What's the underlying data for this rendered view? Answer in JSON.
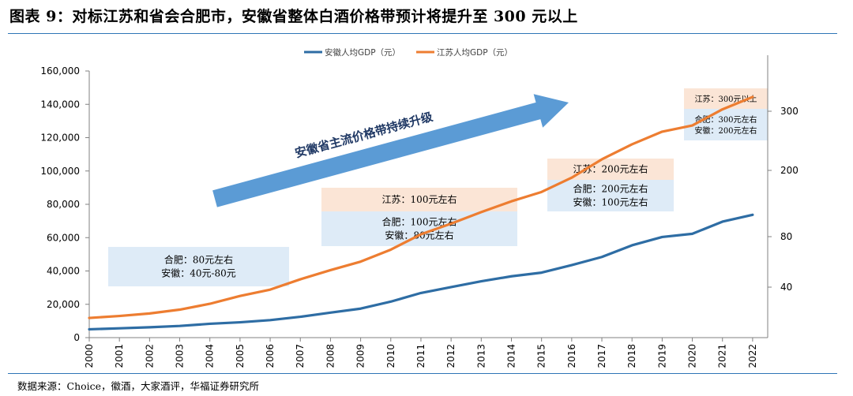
{
  "figure": {
    "title": "图表 9：对标江苏和省会合肥市，安徽省整体白酒价格带预计将提升至 300 元以上",
    "source": "数据来源：Choice，徽酒，大家酒评，华福证券研究所"
  },
  "chart_data": {
    "type": "line",
    "x": [
      "2000",
      "2001",
      "2002",
      "2003",
      "2004",
      "2005",
      "2006",
      "2007",
      "2008",
      "2009",
      "2010",
      "2011",
      "2012",
      "2013",
      "2014",
      "2015",
      "2016",
      "2017",
      "2018",
      "2019",
      "2020",
      "2021",
      "2022"
    ],
    "series": [
      {
        "name": "安徽人均GDP（元）",
        "color": "#2e6da4",
        "values": [
          5000,
          5600,
          6200,
          7000,
          8300,
          9200,
          10500,
          12500,
          15000,
          17400,
          21600,
          26800,
          30300,
          33800,
          36800,
          39000,
          43500,
          48400,
          55400,
          60400,
          62300,
          69600,
          73700
        ]
      },
      {
        "name": "江苏人均GDP（元）",
        "color": "#ed7d31",
        "values": [
          11800,
          13000,
          14500,
          16800,
          20300,
          25000,
          28800,
          35000,
          40500,
          45600,
          52800,
          62000,
          68400,
          75300,
          81800,
          87400,
          96000,
          107000,
          116000,
          123600,
          127300,
          137000,
          144400
        ]
      }
    ],
    "ylim": [
      0,
      160000
    ],
    "yticks": [
      "0",
      "20,000",
      "40,000",
      "60,000",
      "80,000",
      "100,000",
      "120,000",
      "140,000",
      "160,000"
    ],
    "y2ticks": [
      "40",
      "80",
      "200",
      "300"
    ],
    "legend_position": "top-center",
    "grid": false,
    "arrow_label": "安徽省主流价格带持续升级",
    "annotations": [
      {
        "lines": [
          "合肥：80元左右",
          "安徽：40元-80元"
        ]
      },
      {
        "lines": [
          "江苏：100元左右"
        ]
      },
      {
        "lines": [
          "合肥：100元左右",
          "安徽：80元左右"
        ]
      },
      {
        "lines": [
          "江苏：200元左右"
        ]
      },
      {
        "lines": [
          "合肥：200元左右",
          "安徽：100元左右"
        ]
      },
      {
        "lines": [
          "江苏：300元以上"
        ]
      },
      {
        "lines": [
          "合肥：300元左右",
          "安徽：200元左右"
        ]
      }
    ],
    "annotation_colors": {
      "orange_box": "#fbe5d6",
      "blue_box": "#deebf7"
    }
  }
}
